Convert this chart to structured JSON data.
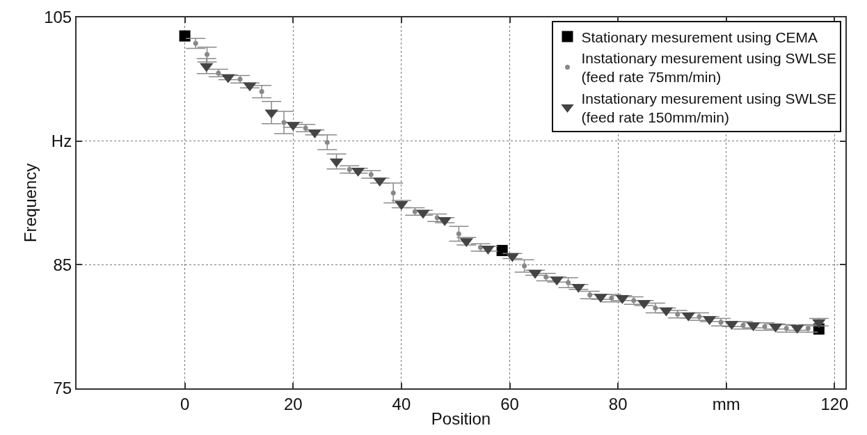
{
  "chart_data": {
    "type": "scatter",
    "xlabel": "Position",
    "ylabel": "Frequency",
    "xlim": [
      -20,
      122
    ],
    "xticks": [
      0,
      20,
      40,
      60,
      80,
      {
        "value": 100,
        "label": "mm"
      },
      120
    ],
    "ylim": [
      75,
      105
    ],
    "yticks": [
      75,
      85,
      {
        "value": 95,
        "label": "Hz"
      },
      105
    ],
    "grid": true,
    "legend": "top right",
    "series": [
      {
        "name": "Stationary mesurement using CEMA",
        "color": "#000000",
        "marker": "square",
        "x": [
          0,
          58.6,
          117.1
        ],
        "values": [
          103.5,
          86.15,
          79.8
        ]
      },
      {
        "name": "Instationary mesurement using SWLSE\n(feed rate 75mm/min)",
        "color": "#888888",
        "marker": "circle",
        "x": [
          2,
          4.1,
          6.2,
          10.2,
          14.2,
          18.3,
          22.3,
          26.3,
          30.4,
          34.4,
          38.5,
          42.5,
          46.6,
          50.6,
          54.6,
          58.6,
          62.7,
          66.7,
          70.8,
          74.8,
          78.8,
          82.9,
          86.9,
          91.0,
          95.0,
          99.0,
          103.1,
          107.1,
          111.1,
          115.1
        ],
        "values": [
          102.9,
          102.0,
          100.5,
          100.0,
          99.0,
          96.5,
          96.05,
          94.9,
          92.7,
          92.3,
          90.8,
          89.3,
          88.8,
          87.5,
          86.4,
          null,
          84.9,
          84.0,
          83.55,
          82.55,
          82.3,
          82.1,
          81.5,
          81.0,
          80.8,
          80.35,
          80.1,
          80.0,
          79.85,
          79.85
        ],
        "errors": [
          0.4,
          0.6,
          0.3,
          0.3,
          0.5,
          0.9,
          0.3,
          0.6,
          0.3,
          0.3,
          0.8,
          0.3,
          0.3,
          0.6,
          0.3,
          null,
          0.5,
          0.3,
          0.4,
          0.3,
          0.3,
          0.3,
          0.4,
          0.3,
          0.3,
          0.3,
          0.3,
          0.3,
          0.3,
          0.3
        ]
      },
      {
        "name": "Instationary mesurement using SWLSE\n(feed rate 150mm/min)",
        "color": "#444444",
        "marker": "triangle",
        "x": [
          4.0,
          8.0,
          12.0,
          16.0,
          20.0,
          24.0,
          28.0,
          32.0,
          36.0,
          40.0,
          44.0,
          48.0,
          52.0,
          56.0,
          60.5,
          64.7,
          68.7,
          72.7,
          76.8,
          80.8,
          84.8,
          88.9,
          93.0,
          96.9,
          101.0,
          105.0,
          109.1,
          113.1,
          117.1
        ],
        "values": [
          101.06,
          100.16,
          99.5,
          97.3,
          96.3,
          95.7,
          93.35,
          92.6,
          91.8,
          89.9,
          89.2,
          88.6,
          86.9,
          86.3,
          85.7,
          84.35,
          83.8,
          83.2,
          82.4,
          82.3,
          81.9,
          81.3,
          80.9,
          80.6,
          80.2,
          80.1,
          80.0,
          79.9,
          80.35
        ],
        "errors": [
          0.6,
          0.2,
          0.2,
          0.9,
          0.2,
          0.2,
          0.6,
          0.2,
          0.2,
          0.3,
          0.2,
          0.2,
          0.3,
          0.2,
          0.2,
          0.2,
          0.2,
          0.2,
          0.2,
          0.2,
          0.2,
          0.2,
          0.2,
          0.2,
          0.2,
          0.2,
          0.2,
          0.2,
          0.3
        ]
      }
    ]
  }
}
